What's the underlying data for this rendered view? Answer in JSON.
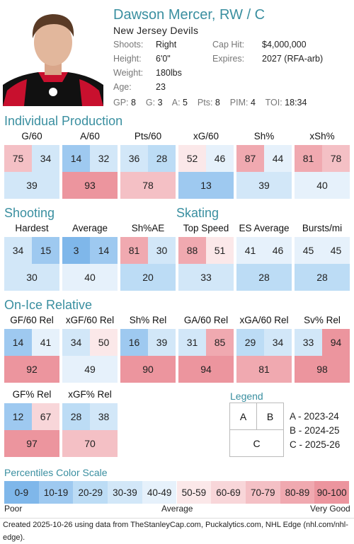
{
  "player": {
    "name": "Dawson Mercer, RW / C",
    "team": "New Jersey Devils",
    "shoots_label": "Shoots:",
    "shoots": "Right",
    "height_label": "Height:",
    "height": "6'0\"",
    "weight_label": "Weight:",
    "weight": "180lbs",
    "age_label": "Age:",
    "age": "23",
    "cap_label": "Cap Hit:",
    "cap": "$4,000,000",
    "expires_label": "Expires:",
    "expires": "2027 (RFA-arb)"
  },
  "stats": {
    "gp_label": "GP:",
    "gp": "8",
    "g_label": "G:",
    "g": "3",
    "a_label": "A:",
    "a": "5",
    "pts_label": "Pts:",
    "pts": "8",
    "pim_label": "PIM:",
    "pim": "4",
    "toi_label": "TOI:",
    "toi": "18:34"
  },
  "sections": {
    "individual": "Individual Production",
    "shooting": "Shooting",
    "skating": "Skating",
    "onice": "On-Ice Relative"
  },
  "individual": [
    {
      "label": "G/60",
      "a": "75",
      "b": "34",
      "c": "39"
    },
    {
      "label": "A/60",
      "a": "14",
      "b": "32",
      "c": "93"
    },
    {
      "label": "Pts/60",
      "a": "36",
      "b": "28",
      "c": "78"
    },
    {
      "label": "xG/60",
      "a": "52",
      "b": "46",
      "c": "13"
    },
    {
      "label": "Sh%",
      "a": "87",
      "b": "44",
      "c": "39"
    },
    {
      "label": "xSh%",
      "a": "81",
      "b": "78",
      "c": "40"
    }
  ],
  "shooting": [
    {
      "label": "Hardest",
      "a": "34",
      "b": "15",
      "c": "30"
    },
    {
      "label": "Average",
      "a": "3",
      "b": "14",
      "c": "40"
    },
    {
      "label": "Sh%AE",
      "a": "81",
      "b": "30",
      "c": "20"
    }
  ],
  "skating": [
    {
      "label": "Top Speed",
      "a": "88",
      "b": "51",
      "c": "33"
    },
    {
      "label": "ES Average",
      "a": "41",
      "b": "46",
      "c": "28"
    },
    {
      "label": "Bursts/mi",
      "a": "45",
      "b": "45",
      "c": "28"
    }
  ],
  "onice": [
    {
      "label": "GF/60 Rel",
      "a": "14",
      "b": "41",
      "c": "92"
    },
    {
      "label": "xGF/60 Rel",
      "a": "34",
      "b": "50",
      "c": "49"
    },
    {
      "label": "Sh% Rel",
      "a": "16",
      "b": "39",
      "c": "90"
    },
    {
      "label": "GA/60 Rel",
      "a": "31",
      "b": "85",
      "c": "94"
    },
    {
      "label": "xGA/60 Rel",
      "a": "29",
      "b": "34",
      "c": "81"
    },
    {
      "label": "Sv% Rel",
      "a": "33",
      "b": "94",
      "c": "98"
    },
    {
      "label": "GF% Rel",
      "a": "12",
      "b": "67",
      "c": "97"
    },
    {
      "label": "xGF% Rel",
      "a": "28",
      "b": "38",
      "c": "70"
    }
  ],
  "legend": {
    "title": "Legend",
    "a": "A",
    "b": "B",
    "c": "C",
    "a_desc": "A - 2023-24",
    "b_desc": "B - 2024-25",
    "c_desc": "C - 2025-26"
  },
  "scale": {
    "title": "Percentiles Color Scale",
    "bins": [
      "0-9",
      "10-19",
      "20-29",
      "30-39",
      "40-49",
      "50-59",
      "60-69",
      "70-79",
      "80-89",
      "90-100"
    ],
    "colors": [
      "#7fb7ea",
      "#9ec9f0",
      "#bcdcf5",
      "#d2e7f8",
      "#e6f1fb",
      "#fbe8e9",
      "#f8d6d9",
      "#f4c0c5",
      "#f0a9b0",
      "#ec959e"
    ],
    "poor": "Poor",
    "average": "Average",
    "very_good": "Very Good"
  },
  "footer": "Created 2025-10-26 using data from TheStanleyCap.com, Puckalytics.com, NHL Edge (nhl.com/nhl-edge)."
}
